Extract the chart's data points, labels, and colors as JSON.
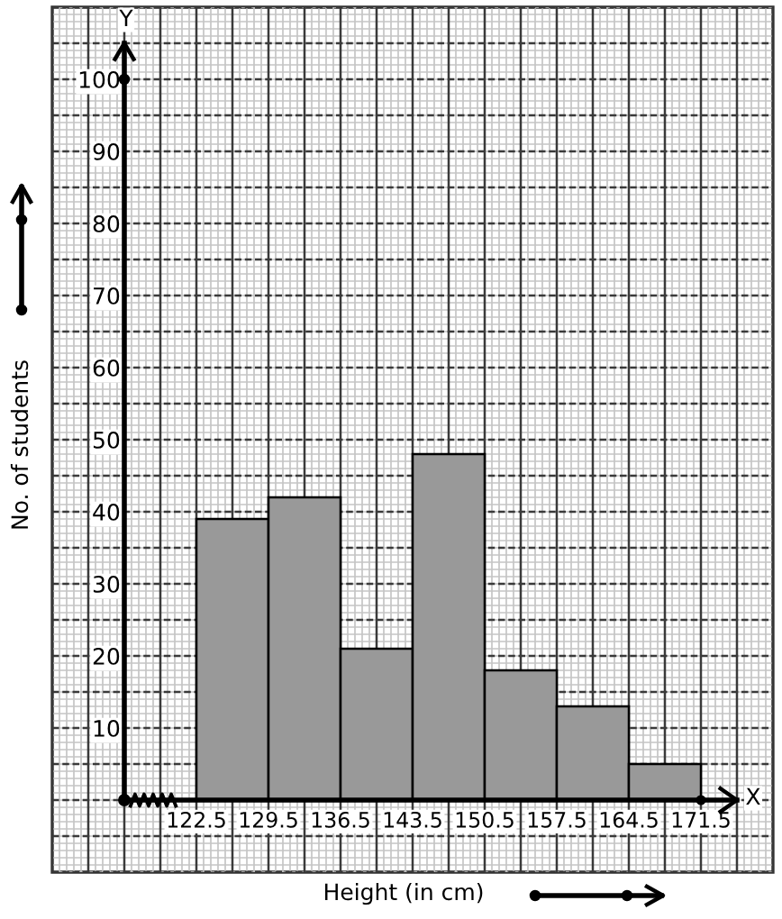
{
  "chart_data": {
    "type": "histogram",
    "xlabel": "Height (in cm)",
    "ylabel": "No. of students",
    "annotations": [
      "Y",
      "X"
    ],
    "bins": [
      122.5,
      129.5,
      136.5,
      143.5,
      150.5,
      157.5,
      164.5,
      171.5
    ],
    "values": [
      39,
      42,
      21,
      48,
      18,
      13,
      5
    ],
    "color": "#999999",
    "xlim": [
      108.5,
      178.5
    ],
    "ylim": [
      -10,
      110
    ],
    "xticks": [
      122.5,
      129.5,
      136.5,
      143.5,
      150.5,
      157.5,
      164.5,
      171.5
    ],
    "yticks": [
      10,
      20,
      30,
      40,
      50,
      60,
      70,
      80,
      90,
      100
    ],
    "grid": true
  }
}
